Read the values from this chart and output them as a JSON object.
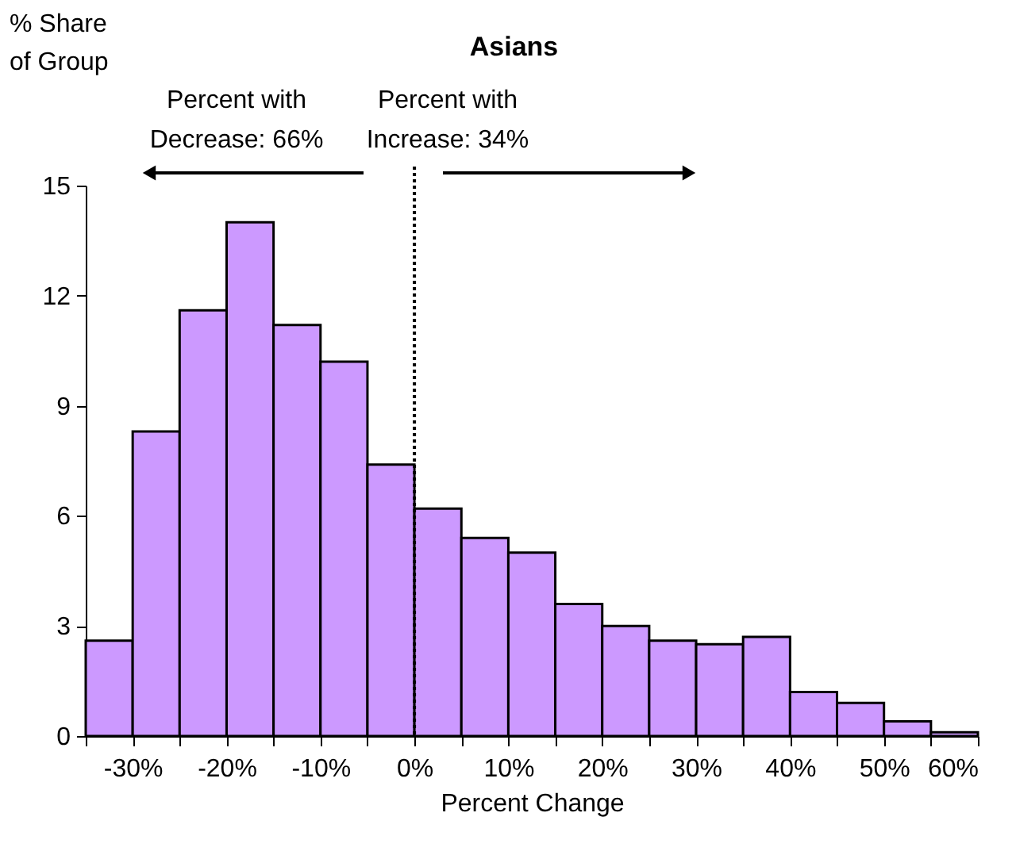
{
  "chart_data": {
    "type": "histogram",
    "title": "Asians",
    "xlabel": "Percent Change",
    "ylabel": "% Share\nof Group",
    "bins": [
      -35,
      -30,
      -25,
      -20,
      -15,
      -10,
      -5,
      0,
      5,
      10,
      15,
      20,
      25,
      30,
      35,
      40,
      45,
      50,
      55,
      60
    ],
    "values": [
      2.6,
      8.3,
      11.6,
      14.0,
      11.2,
      10.2,
      7.4,
      6.2,
      5.4,
      5.0,
      3.6,
      3.0,
      2.6,
      2.5,
      2.7,
      1.2,
      0.9,
      0.4,
      0.1
    ],
    "color": "#cc99ff",
    "xlim": [
      -35,
      60
    ],
    "xticks": [
      {
        "value": -35,
        "label": null
      },
      {
        "value": -30,
        "label": "-30%"
      },
      {
        "value": -25,
        "label": null
      },
      {
        "value": -20,
        "label": "-20%"
      },
      {
        "value": -15,
        "label": null
      },
      {
        "value": -10,
        "label": "-10%"
      },
      {
        "value": -5,
        "label": null
      },
      {
        "value": 0,
        "label": "0%"
      },
      {
        "value": 5,
        "label": null
      },
      {
        "value": 10,
        "label": "10%"
      },
      {
        "value": 15,
        "label": null
      },
      {
        "value": 20,
        "label": "20%"
      },
      {
        "value": 25,
        "label": null
      },
      {
        "value": 30,
        "label": "30%"
      },
      {
        "value": 35,
        "label": null
      },
      {
        "value": 40,
        "label": "40%"
      },
      {
        "value": 45,
        "label": null
      },
      {
        "value": 50,
        "label": "50%"
      },
      {
        "value": 55,
        "label": null
      },
      {
        "value": 60,
        "label": "60%"
      }
    ],
    "ylim": [
      0,
      15
    ],
    "yticks": [
      0,
      3,
      6,
      9,
      12,
      15
    ],
    "grid": false,
    "ref_lines": [
      {
        "axis": "x",
        "value": 0,
        "line_style": "dotted",
        "color": "#000000"
      }
    ],
    "annotations": [
      "Percent with\nDecrease: 66%",
      "Percent with\nIncrease: 34%"
    ]
  }
}
